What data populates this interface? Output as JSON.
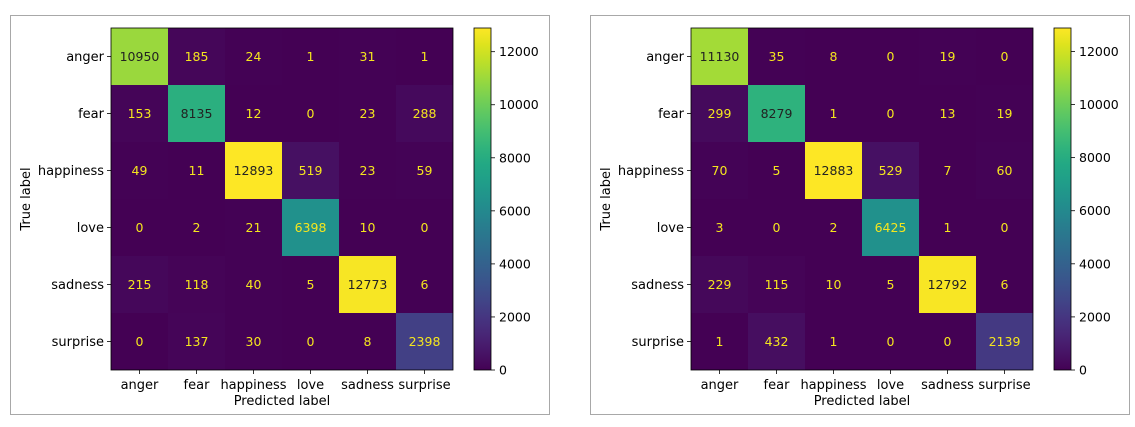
{
  "chart_data": [
    {
      "type": "heatmap",
      "title": "",
      "xlabel": "Predicted label",
      "ylabel": "True label",
      "x_categories": [
        "anger",
        "fear",
        "happiness",
        "love",
        "sadness",
        "surprise"
      ],
      "y_categories": [
        "anger",
        "fear",
        "happiness",
        "love",
        "sadness",
        "surprise"
      ],
      "values": [
        [
          10950,
          185,
          24,
          1,
          31,
          1
        ],
        [
          153,
          8135,
          12,
          0,
          23,
          288
        ],
        [
          49,
          11,
          12893,
          519,
          23,
          59
        ],
        [
          0,
          2,
          21,
          6398,
          10,
          0
        ],
        [
          215,
          118,
          40,
          5,
          12773,
          6
        ],
        [
          0,
          137,
          30,
          0,
          8,
          2398
        ]
      ],
      "colormap": "viridis",
      "colorbar": {
        "range": [
          0,
          12893
        ],
        "ticks": [
          0,
          2000,
          4000,
          6000,
          8000,
          10000,
          12000
        ]
      },
      "grid": false
    },
    {
      "type": "heatmap",
      "title": "",
      "xlabel": "Predicted label",
      "ylabel": "True label",
      "x_categories": [
        "anger",
        "fear",
        "happiness",
        "love",
        "sadness",
        "surprise"
      ],
      "y_categories": [
        "anger",
        "fear",
        "happiness",
        "love",
        "sadness",
        "surprise"
      ],
      "values": [
        [
          11130,
          35,
          8,
          0,
          19,
          0
        ],
        [
          299,
          8279,
          1,
          0,
          13,
          19
        ],
        [
          70,
          5,
          12883,
          529,
          7,
          60
        ],
        [
          3,
          0,
          2,
          6425,
          1,
          0
        ],
        [
          229,
          115,
          10,
          5,
          12792,
          6
        ],
        [
          1,
          432,
          1,
          0,
          0,
          2139
        ]
      ],
      "colormap": "viridis",
      "colorbar": {
        "range": [
          0,
          12883
        ],
        "ticks": [
          0,
          2000,
          4000,
          6000,
          8000,
          10000,
          12000
        ]
      },
      "grid": false
    }
  ]
}
